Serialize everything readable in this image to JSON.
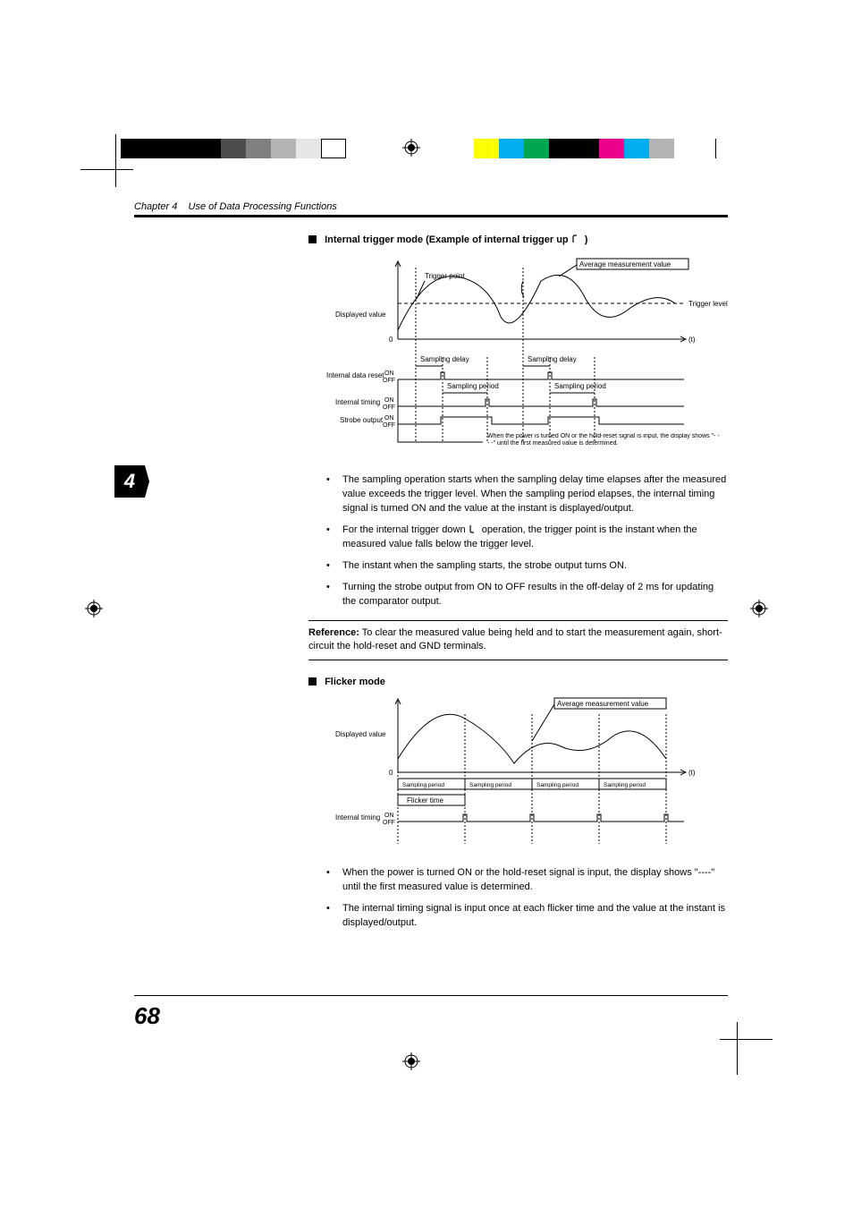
{
  "header": {
    "chapter_label": "Chapter 4",
    "chapter_title": "Use of Data Processing Functions"
  },
  "chapter_tab": "4",
  "page_number": "68",
  "section1": {
    "heading": "Internal trigger mode (Example of internal trigger up",
    "heading_suffix": ")",
    "diagram": {
      "labels": {
        "avg_measurement": "Average measurement value",
        "trigger_point": "Trigger point",
        "trigger_level": "Trigger level",
        "displayed_value": "Displayed value",
        "zero": "0",
        "time_axis": "(t)",
        "sampling_delay": "Sampling delay",
        "sampling_period": "Sampling period",
        "internal_data_reset": "Internal data reset",
        "internal_timing": "Internal timing",
        "strobe_output": "Strobe output",
        "on": "ON",
        "off": "OFF",
        "power_note": "When the power is turned ON or the hold-reset signal is input, the display shows \"- - - -\" until the first measured value is determined."
      },
      "colors": {
        "line": "#000000",
        "dash": "#000000",
        "bg": "#ffffff"
      }
    },
    "bullets": [
      "The sampling operation starts when the sampling delay time elapses after the measured value exceeds the trigger level. When the sampling period elapses, the internal timing signal is turned ON and the value at the instant is displayed/output.",
      "For the internal trigger down  operation, the trigger point is the instant when the measured value falls below the trigger level.",
      "The instant when the sampling starts, the strobe output turns ON.",
      "Turning the strobe output from ON to OFF results in the off-delay of 2 ms for updating the comparator output."
    ],
    "reference_label": "Reference:",
    "reference_text": " To clear the measured value being held and to start the measurement again, short-circuit the hold-reset and GND terminals."
  },
  "section2": {
    "heading": "Flicker mode",
    "diagram": {
      "labels": {
        "avg_measurement": "Average measurement value",
        "displayed_value": "Displayed value",
        "zero": "0",
        "time_axis": "(t)",
        "sampling_period": "Sampling period",
        "flicker_time": "Flicker time",
        "internal_timing": "Internal timing",
        "on": "ON",
        "off": "OFF"
      }
    },
    "bullets": [
      "When the power is turned ON or the hold-reset signal is input, the display shows \"----\" until the first measured value is determined.",
      "The internal timing signal is input once at each flicker time and the value at the instant is displayed/output."
    ]
  },
  "color_bars": {
    "left": [
      "#000000",
      "#000000",
      "#000000",
      "#000000",
      "#4d4d4d",
      "#808080",
      "#b3b3b3",
      "#e6e6e6",
      "#ffffff"
    ],
    "right": [
      "#ffff00",
      "#00aeef",
      "#00a651",
      "#000000",
      "#000000",
      "#ec008c",
      "#00aeef",
      "#b3b3b3"
    ]
  }
}
